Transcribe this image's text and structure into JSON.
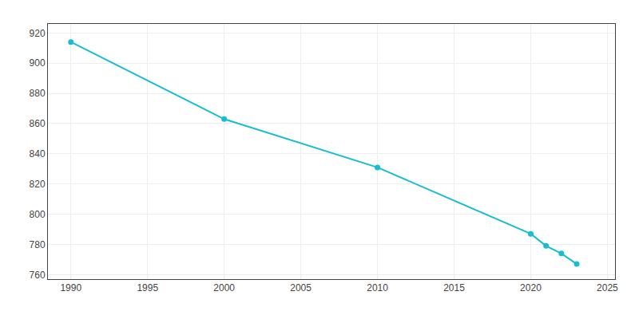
{
  "chart_data": {
    "type": "line",
    "x": [
      1990,
      2000,
      2010,
      2020,
      2021,
      2022,
      2023
    ],
    "values": [
      914,
      863,
      831,
      787,
      779,
      774,
      767
    ],
    "color": "#17BECF",
    "marker": "circle",
    "line_style": "solid",
    "xlim": [
      1988.5,
      2025.5
    ],
    "xticks": [
      1990,
      1995,
      2000,
      2005,
      2010,
      2015,
      2020,
      2025
    ],
    "ylim": [
      757,
      926
    ],
    "yticks": [
      760,
      780,
      800,
      820,
      840,
      860,
      880,
      900,
      920
    ],
    "grid": true
  }
}
